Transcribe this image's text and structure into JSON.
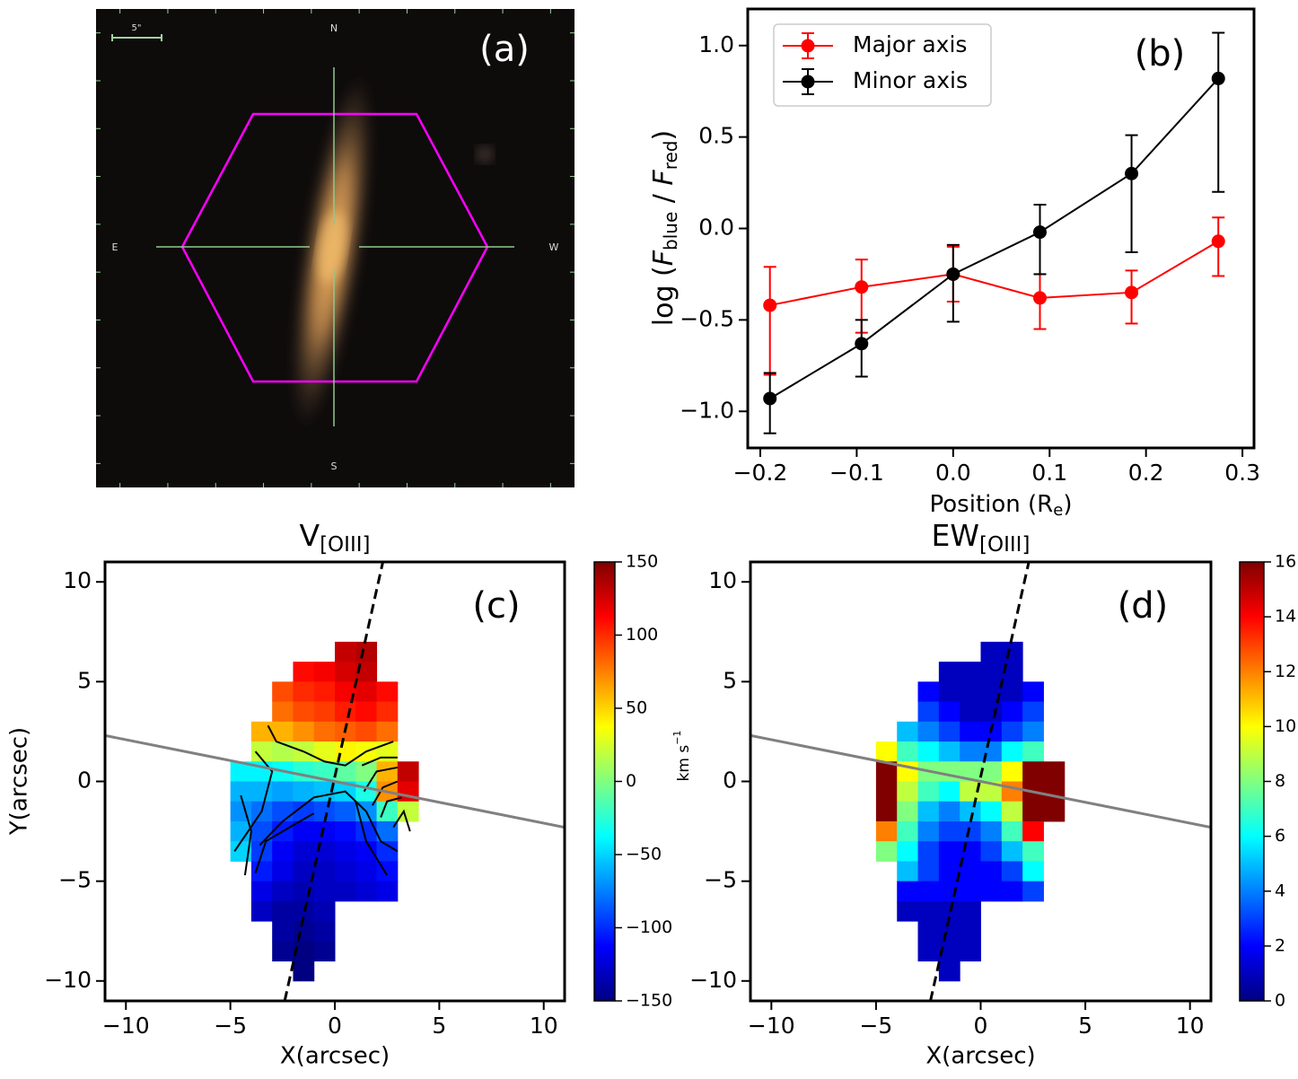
{
  "image_panel": {
    "label": "(a)",
    "north": "N",
    "south": "S",
    "east": "E",
    "west": "W",
    "scale_label": "5\"",
    "hexagon_color": "#ff00ff",
    "crosshair_color": "#8fc98f"
  },
  "chart_data": [
    {
      "type": "errorbar_line",
      "label": "(b)",
      "xlabel": "Position (R",
      "xlabel_sub": "e",
      "xlabel_end": ")",
      "ylabel_parts": [
        "log (",
        "F",
        "blue",
        " / ",
        "F",
        "red",
        ")"
      ],
      "ylabel_styles": [
        "normal",
        "italic",
        "sub",
        "normal",
        "italic",
        "sub",
        "normal"
      ],
      "xlim": [
        -0.213,
        0.312
      ],
      "ylim": [
        -1.2,
        1.2
      ],
      "xticks": [
        {
          "value": -0.2,
          "label": "−0.2"
        },
        {
          "value": -0.1,
          "label": "−0.1"
        },
        {
          "value": 0,
          "label": "0.0"
        },
        0.1,
        0.2,
        0.3
      ],
      "yticks": [
        {
          "value": -1,
          "label": "−1.0"
        },
        {
          "value": -0.5,
          "label": "−0.5"
        },
        {
          "value": 0,
          "label": "0.0"
        },
        {
          "value": 0.5,
          "label": "0.5"
        },
        {
          "value": 1,
          "label": "1.0"
        }
      ],
      "legend": "upper left",
      "series": [
        {
          "name": "Major axis",
          "color": "#ff0000",
          "x": [
            -0.19,
            -0.095,
            0.0,
            0.09,
            0.185,
            0.275
          ],
          "values": [
            -0.42,
            -0.32,
            -0.25,
            -0.38,
            -0.35,
            -0.07
          ],
          "err_minus": [
            0.38,
            0.25,
            0.15,
            0.17,
            0.17,
            0.19
          ],
          "err_plus": [
            0.21,
            0.15,
            0.15,
            0.13,
            0.12,
            0.13
          ]
        },
        {
          "name": "Minor axis",
          "color": "#000000",
          "x": [
            -0.19,
            -0.095,
            0.0,
            0.09,
            0.185,
            0.275
          ],
          "values": [
            -0.93,
            -0.63,
            -0.25,
            -0.02,
            0.3,
            0.82
          ],
          "err_minus": [
            0.19,
            0.18,
            0.26,
            0.23,
            0.43,
            0.62
          ],
          "err_plus": [
            0.14,
            0.13,
            0.16,
            0.15,
            0.21,
            0.25
          ]
        }
      ]
    },
    {
      "type": "heatmap",
      "title": "V",
      "title_sub": "[OIII]",
      "label": "(c)",
      "xlabel": "X(arcsec)",
      "ylabel": "Y(arcsec)",
      "xlim": [
        -11,
        11
      ],
      "ylim": [
        -11,
        11
      ],
      "xticks": [
        {
          "value": -10,
          "label": "−10"
        },
        {
          "value": -5,
          "label": "−5"
        },
        0,
        5,
        10
      ],
      "yticks": [
        {
          "value": -10,
          "label": "−10"
        },
        {
          "value": -5,
          "label": "−5"
        },
        0,
        5,
        10
      ],
      "colormap": "jet",
      "clim": [
        -150,
        150
      ],
      "cticks": [
        {
          "value": -150,
          "label": "−150"
        },
        {
          "value": -100,
          "label": "−100"
        },
        {
          "value": -50,
          "label": "−50"
        },
        0,
        50,
        100,
        150
      ],
      "cbar_label": "km s",
      "cbar_label_sup": "−1",
      "x": [
        -4.5,
        -3.5,
        -2.5,
        -1.5,
        -0.5,
        0.5,
        1.5,
        2.5,
        3.5
      ],
      "y": [
        6.5,
        5.5,
        4.5,
        3.5,
        2.5,
        1.5,
        0.5,
        -0.5,
        -1.5,
        -2.5,
        -3.5,
        -4.5,
        -5.5,
        -6.5,
        -7.5,
        -8.5,
        -9.5
      ],
      "values": [
        [
          null,
          null,
          null,
          null,
          null,
          130,
          135,
          null,
          null
        ],
        [
          null,
          null,
          null,
          110,
          115,
          125,
          130,
          null,
          null
        ],
        [
          null,
          null,
          90,
          100,
          105,
          115,
          120,
          110,
          null
        ],
        [
          null,
          null,
          80,
          90,
          95,
          105,
          110,
          100,
          null
        ],
        [
          null,
          60,
          60,
          70,
          80,
          85,
          90,
          80,
          null
        ],
        [
          null,
          20,
          15,
          20,
          30,
          40,
          35,
          30,
          null
        ],
        [
          -40,
          -40,
          -35,
          -25,
          -20,
          -10,
          0,
          60,
          130
        ],
        [
          -60,
          -60,
          -65,
          -60,
          -55,
          -50,
          -30,
          70,
          120
        ],
        [
          -70,
          -80,
          -90,
          -95,
          -90,
          -85,
          -70,
          -20,
          20
        ],
        [
          -60,
          -90,
          -105,
          -115,
          -115,
          -110,
          -100,
          -80,
          null
        ],
        [
          -50,
          -95,
          -115,
          -125,
          -125,
          -120,
          -115,
          -100,
          null
        ],
        [
          null,
          -105,
          -120,
          -130,
          -130,
          -125,
          -120,
          -110,
          null
        ],
        [
          null,
          -120,
          -130,
          -135,
          -130,
          -130,
          -125,
          -120,
          null
        ],
        [
          null,
          -130,
          -140,
          -140,
          -135,
          null,
          null,
          null,
          null
        ],
        [
          null,
          null,
          -140,
          -145,
          -140,
          null,
          null,
          null,
          null
        ],
        [
          null,
          null,
          -145,
          -150,
          -145,
          null,
          null,
          null,
          null
        ],
        [
          null,
          null,
          null,
          -150,
          null,
          null,
          null,
          null,
          null
        ]
      ],
      "lines": [
        {
          "x": [
            -2.4,
            2.3
          ],
          "y": [
            -11,
            11
          ],
          "color": "#000000",
          "dashed": true
        },
        {
          "x": [
            -11,
            11
          ],
          "y": [
            2.3,
            -2.3
          ],
          "color": "#808080",
          "dashed": false
        }
      ],
      "contours": [
        {
          "x": [
            -3.2,
            -2.8,
            -1.5,
            -0.5,
            0.5,
            1.5,
            2.8
          ],
          "y": [
            2.8,
            2.0,
            1.5,
            1.0,
            0.8,
            1.5,
            2.0
          ]
        },
        {
          "x": [
            -3.8,
            -3.0,
            -3.5,
            -4.8
          ],
          "y": [
            1.5,
            0.5,
            -1.5,
            -3.5
          ]
        },
        {
          "x": [
            -4.5,
            -4.0,
            -4.3
          ],
          "y": [
            -0.7,
            -2.5,
            -4.7
          ]
        },
        {
          "x": [
            -3.6,
            -2.5,
            -1.0,
            0.5,
            1.5,
            2.2,
            3.0
          ],
          "y": [
            -3.2,
            -2.0,
            -0.8,
            -0.5,
            -1.5,
            -3.0,
            -3.5
          ]
        },
        {
          "x": [
            -3.8,
            -3.3,
            -2.0,
            -1.0
          ],
          "y": [
            -4.6,
            -3.0,
            -2.2,
            -1.6
          ]
        },
        {
          "x": [
            1.0,
            1.5,
            2.5
          ],
          "y": [
            -1.0,
            -3.0,
            -4.7
          ]
        },
        {
          "x": [
            1.3,
            2.2,
            3.0
          ],
          "y": [
            0.8,
            1.2,
            1.2
          ]
        },
        {
          "x": [
            1.4,
            2.0,
            3.0
          ],
          "y": [
            -0.5,
            0.5,
            0.7
          ]
        },
        {
          "x": [
            1.8,
            2.3,
            3.0
          ],
          "y": [
            -1.2,
            -0.3,
            0.0
          ]
        },
        {
          "x": [
            2.2,
            2.5,
            3.2
          ],
          "y": [
            -1.8,
            -1.0,
            -0.8
          ]
        },
        {
          "x": [
            2.8,
            3.3,
            3.6
          ],
          "y": [
            -2.3,
            -1.5,
            -2.5
          ]
        }
      ]
    },
    {
      "type": "heatmap",
      "title": "EW",
      "title_sub": "[OIII]",
      "label": "(d)",
      "xlabel": "X(arcsec)",
      "xlim": [
        -11,
        11
      ],
      "ylim": [
        -11,
        11
      ],
      "xticks": [
        {
          "value": -10,
          "label": "−10"
        },
        {
          "value": -5,
          "label": "−5"
        },
        0,
        5,
        10
      ],
      "yticks": [
        {
          "value": -10,
          "label": "−10"
        },
        {
          "value": -5,
          "label": "−5"
        },
        0,
        5,
        10
      ],
      "colormap": "jet",
      "clim": [
        0,
        16
      ],
      "cticks": [
        0,
        2,
        4,
        6,
        8,
        10,
        12,
        14,
        16
      ],
      "x": [
        -4.5,
        -3.5,
        -2.5,
        -1.5,
        -0.5,
        0.5,
        1.5,
        2.5,
        3.5
      ],
      "y": [
        6.5,
        5.5,
        4.5,
        3.5,
        2.5,
        1.5,
        0.5,
        -0.5,
        -1.5,
        -2.5,
        -3.5,
        -4.5,
        -5.5,
        -6.5,
        -7.5,
        -8.5,
        -9.5
      ],
      "values": [
        [
          null,
          null,
          null,
          null,
          null,
          1,
          1,
          null,
          null
        ],
        [
          null,
          null,
          null,
          1,
          1,
          1,
          1,
          null,
          null
        ],
        [
          null,
          null,
          2,
          1,
          1,
          1,
          1,
          2,
          null
        ],
        [
          null,
          null,
          3,
          2,
          1,
          1,
          2,
          3,
          null
        ],
        [
          null,
          5,
          4,
          3,
          2,
          2,
          3,
          4,
          null
        ],
        [
          10,
          7,
          6,
          5,
          4,
          4,
          6,
          7,
          null
        ],
        [
          16,
          10,
          8,
          8,
          8,
          8,
          10,
          16,
          16
        ],
        [
          16,
          9,
          7,
          6,
          9,
          9,
          12,
          16,
          16
        ],
        [
          16,
          8,
          5,
          4,
          5,
          6,
          9,
          16,
          16
        ],
        [
          12,
          7,
          4,
          3,
          3,
          4,
          7,
          14,
          null
        ],
        [
          8,
          6,
          3,
          2,
          2,
          3,
          5,
          7,
          null
        ],
        [
          null,
          5,
          3,
          2,
          2,
          2,
          3,
          6,
          null
        ],
        [
          null,
          2,
          2,
          2,
          2,
          2,
          2,
          3,
          null
        ],
        [
          null,
          1,
          1,
          1,
          1,
          null,
          null,
          null,
          null
        ],
        [
          null,
          null,
          1,
          1,
          1,
          null,
          null,
          null,
          null
        ],
        [
          null,
          null,
          1,
          1,
          1,
          null,
          null,
          null,
          null
        ],
        [
          null,
          null,
          null,
          1,
          null,
          null,
          null,
          null,
          null
        ]
      ],
      "lines": [
        {
          "x": [
            -2.4,
            2.3
          ],
          "y": [
            -11,
            11
          ],
          "color": "#000000",
          "dashed": true
        },
        {
          "x": [
            -11,
            11
          ],
          "y": [
            2.3,
            -2.3
          ],
          "color": "#808080",
          "dashed": false
        }
      ]
    }
  ]
}
